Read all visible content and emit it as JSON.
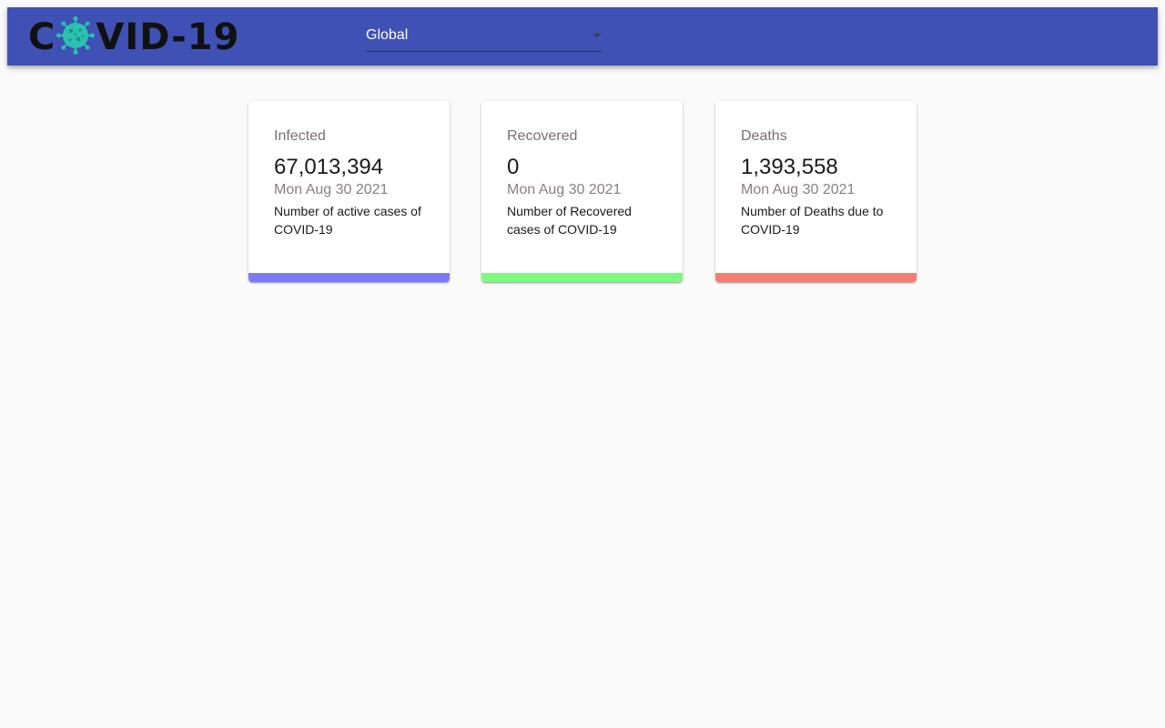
{
  "header": {
    "logo": {
      "text_before": "C",
      "text_after": "VID-19",
      "virus_color": "#2bc1b0"
    },
    "country_select": {
      "value": "Global"
    },
    "color": "#3f51b5"
  },
  "cards": [
    {
      "title": "Infected",
      "count": "67,013,394",
      "date": "Mon Aug 30 2021",
      "description": "Number of active cases of COVID-19",
      "bar_color": "#7b7bf7"
    },
    {
      "title": "Recovered",
      "count": "0",
      "date": "Mon Aug 30 2021",
      "description": "Number of Recovered cases of COVID-19",
      "bar_color": "#7dfa7d"
    },
    {
      "title": "Deaths",
      "count": "1,393,558",
      "date": "Mon Aug 30 2021",
      "description": "Number of Deaths due to COVID-19",
      "bar_color": "#f37f72"
    }
  ]
}
